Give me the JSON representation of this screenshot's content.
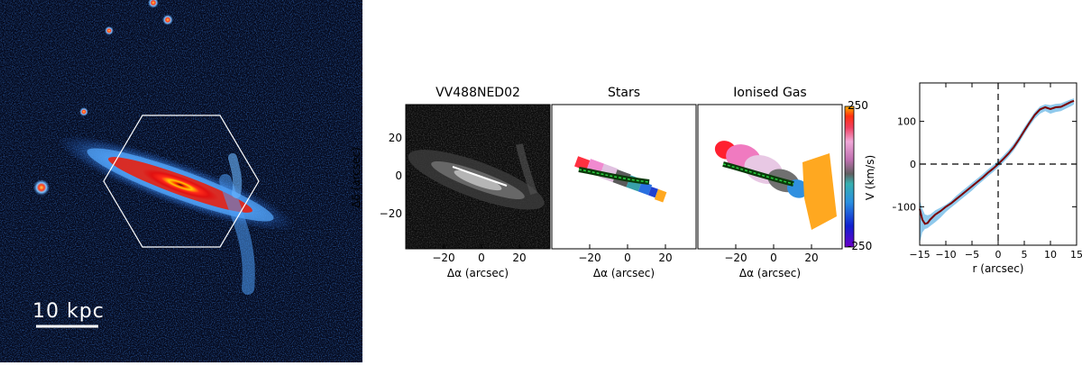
{
  "galaxy_image": {
    "scale_bar_label": "10 kpc"
  },
  "maps": {
    "panel_titles": [
      "VV488NED02",
      "Stars",
      "Ionised Gas"
    ],
    "xlabel": "Δα  (arcsec)",
    "ylabel": "Δδ  (arcsec)",
    "x_ticks": [
      "−20",
      "0",
      "20"
    ],
    "y_ticks": [
      "20",
      "0",
      "−20"
    ],
    "colorbar": {
      "label": "V (km/s)",
      "max_label": "250",
      "min_label": "-250",
      "range": [
        -250,
        250
      ]
    }
  },
  "chart_data": {
    "type": "line",
    "xlabel": "r (arcsec)",
    "ylabel": "",
    "xlim": [
      -15,
      15
    ],
    "ylim": [
      -190,
      190
    ],
    "x_ticks": [
      -15,
      -10,
      -5,
      0,
      5,
      10,
      15
    ],
    "y_ticks": [
      100,
      0,
      -100
    ],
    "x_tick_labels": [
      "−15",
      "−10",
      "−5",
      "0",
      "5",
      "10",
      "15"
    ],
    "y_tick_labels": [
      "100",
      "0",
      "−100"
    ],
    "series": [
      {
        "color": "#7a0000",
        "x": [
          -15,
          -14.5,
          -14,
          -13.5,
          -13,
          -12,
          -11,
          -10,
          -9,
          -8,
          -7,
          -6,
          -5,
          -4,
          -3,
          -2,
          -1,
          0,
          1,
          2,
          3,
          4,
          5,
          6,
          7,
          8,
          9,
          10,
          11,
          12,
          13,
          14,
          14.5
        ],
        "y": [
          -105,
          -130,
          -140,
          -138,
          -130,
          -118,
          -110,
          -100,
          -92,
          -82,
          -72,
          -62,
          -52,
          -42,
          -32,
          -21,
          -11,
          0,
          12,
          25,
          40,
          58,
          78,
          97,
          115,
          128,
          133,
          129,
          133,
          134,
          140,
          146,
          148
        ]
      }
    ],
    "band": {
      "color": "#8fc9ec",
      "x": [
        -15,
        -14.5,
        -14,
        -13.5,
        -13,
        -12,
        -11,
        -10,
        -9,
        -8,
        -7,
        -6,
        -5,
        -4,
        -3,
        -2,
        -1,
        0,
        1,
        2,
        3,
        4,
        5,
        6,
        7,
        8,
        9,
        10,
        11,
        12,
        13,
        14,
        14.5
      ],
      "upper": [
        -85,
        -105,
        -118,
        -120,
        -118,
        -108,
        -102,
        -95,
        -86,
        -74,
        -64,
        -54,
        -44,
        -34,
        -24,
        -13,
        -3,
        8,
        20,
        33,
        48,
        66,
        86,
        104,
        122,
        135,
        140,
        138,
        141,
        142,
        147,
        152,
        154
      ],
      "lower": [
        -185,
        -160,
        -152,
        -150,
        -145,
        -136,
        -125,
        -112,
        -102,
        -92,
        -82,
        -72,
        -62,
        -50,
        -40,
        -29,
        -19,
        -8,
        4,
        17,
        32,
        50,
        70,
        89,
        106,
        118,
        124,
        118,
        122,
        124,
        130,
        136,
        140
      ]
    },
    "reference_lines": {
      "x": 0,
      "y": 0,
      "style": "dashed"
    }
  }
}
